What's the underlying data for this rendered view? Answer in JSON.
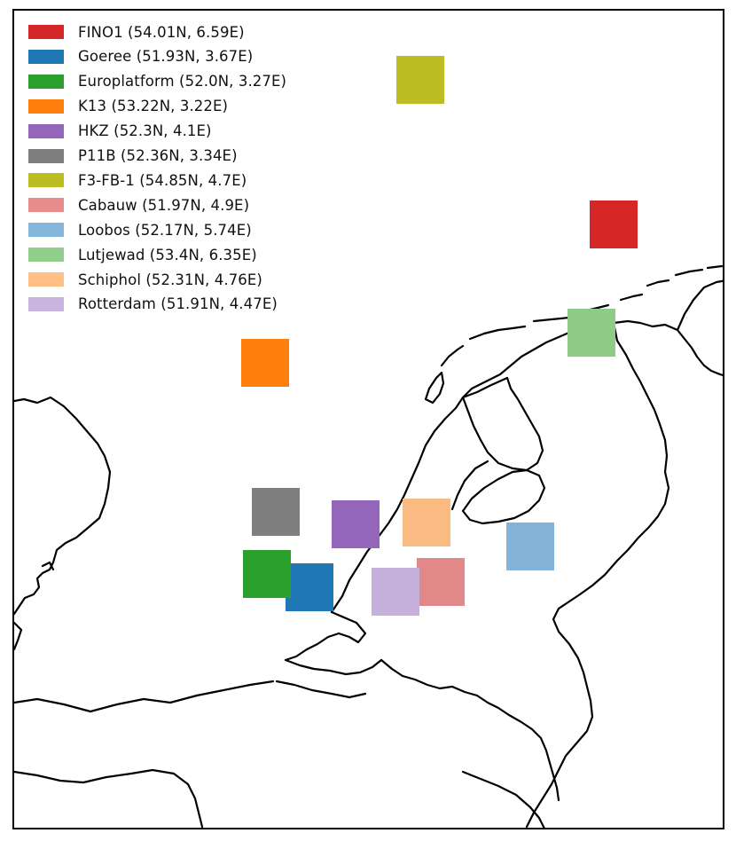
{
  "map": {
    "region": "Netherlands and surrounding North Sea",
    "coastline_color": "#000000"
  },
  "stations": [
    {
      "id": "fino1",
      "label": "FINO1 (54.01N, 6.59E)",
      "color": "#d62728",
      "style": "solid"
    },
    {
      "id": "goeree",
      "label": "Goeree (51.93N, 3.67E)",
      "color": "#1f77b4",
      "style": "solid"
    },
    {
      "id": "europlatform",
      "label": "Europlatform (52.0N, 3.27E)",
      "color": "#2ca02c",
      "style": "solid"
    },
    {
      "id": "k13",
      "label": "K13 (53.22N, 3.22E)",
      "color": "#ff7f0e",
      "style": "solid"
    },
    {
      "id": "hkz",
      "label": "HKZ (52.3N, 4.1E)",
      "color": "#9467bd",
      "style": "solid"
    },
    {
      "id": "p11b",
      "label": "P11B (52.36N, 3.34E)",
      "color": "#7f7f7f",
      "style": "solid"
    },
    {
      "id": "f3fb1",
      "label": "F3-FB-1 (54.85N, 4.7E)",
      "color": "#bcbd22",
      "style": "solid"
    },
    {
      "id": "cabauw",
      "label": "Cabauw (51.97N, 4.9E)",
      "color": "#e68c8c",
      "style": "dashed"
    },
    {
      "id": "loobos",
      "label": "Loobos (52.17N, 5.74E)",
      "color": "#86b6da",
      "style": "dashed"
    },
    {
      "id": "lutjewad",
      "label": "Lutjewad (53.4N, 6.35E)",
      "color": "#90cf89",
      "style": "dashed"
    },
    {
      "id": "schiphol",
      "label": "Schiphol (52.31N, 4.76E)",
      "color": "#ffbf86",
      "style": "dashed"
    },
    {
      "id": "rotterdam",
      "label": "Rotterdam (51.91N, 4.47E)",
      "color": "#c9b3df",
      "style": "dashed"
    }
  ]
}
